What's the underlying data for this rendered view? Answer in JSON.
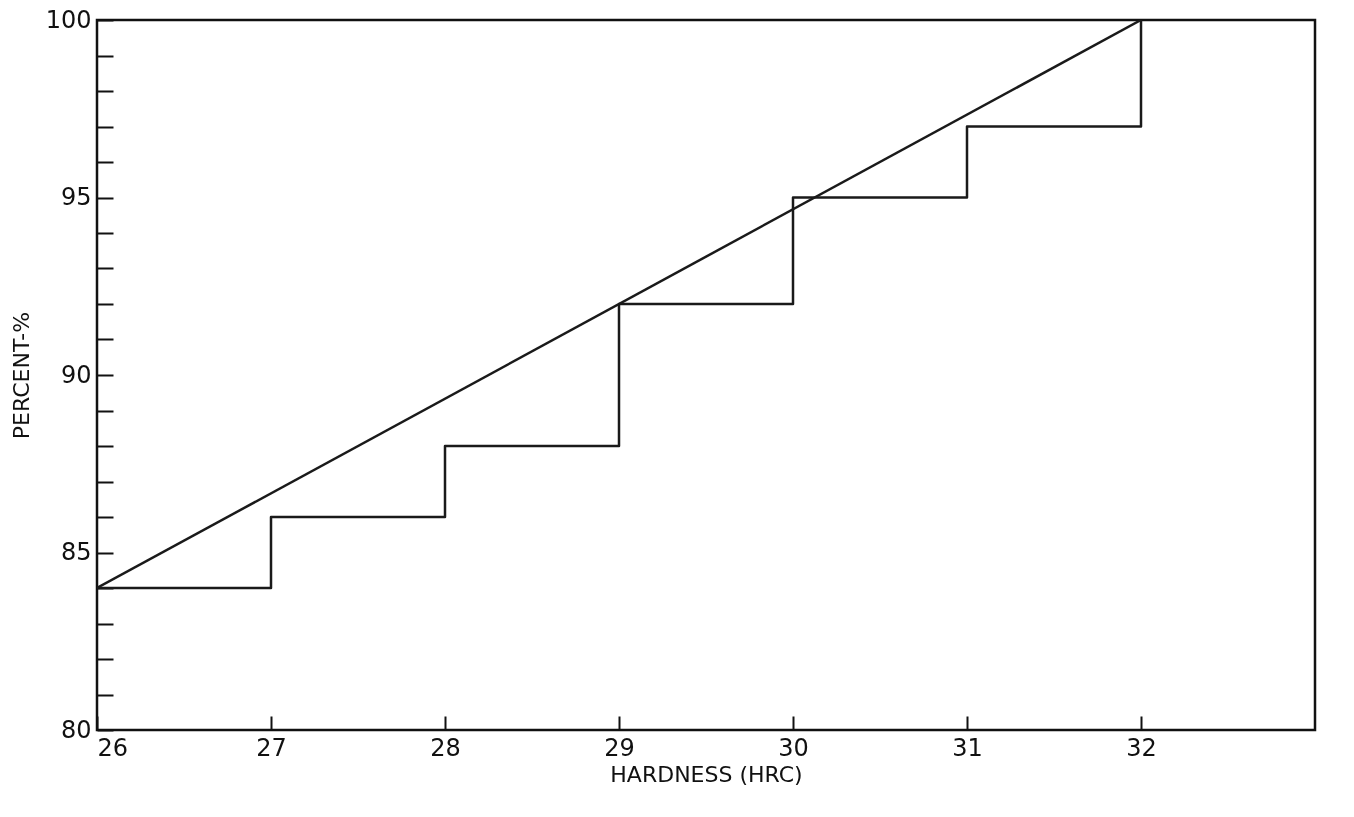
{
  "chart_data": {
    "type": "step",
    "xlabel": "HARDNESS (HRC)",
    "ylabel": "PERCENT-%",
    "xlim": [
      26,
      33
    ],
    "xticks": [
      26,
      27,
      28,
      29,
      30,
      31,
      32
    ],
    "ylim": [
      80,
      100
    ],
    "yticks": [
      80,
      {
        "value": 81,
        "label": null
      },
      {
        "value": 82,
        "label": null
      },
      {
        "value": 83,
        "label": null
      },
      {
        "value": 84,
        "label": null
      },
      85,
      {
        "value": 86,
        "label": null
      },
      {
        "value": 87,
        "label": null
      },
      {
        "value": 88,
        "label": null
      },
      {
        "value": 89,
        "label": null
      },
      90,
      {
        "value": 91,
        "label": null
      },
      {
        "value": 92,
        "label": null
      },
      {
        "value": 93,
        "label": null
      },
      {
        "value": 94,
        "label": null
      },
      95,
      {
        "value": 96,
        "label": null
      },
      {
        "value": 97,
        "label": null
      },
      {
        "value": 98,
        "label": null
      },
      {
        "value": 99,
        "label": null
      },
      100
    ],
    "grid": false,
    "marker": "none",
    "line_style": "solid",
    "series": [
      {
        "type": "step",
        "color": "#1a1a1a",
        "x": [
          26,
          27,
          28,
          29,
          30,
          31,
          32
        ],
        "values": [
          84,
          86,
          88,
          92,
          95,
          97,
          100
        ]
      },
      {
        "type": "line",
        "color": "#1a1a1a",
        "x": [
          26,
          32
        ],
        "values": [
          84,
          100
        ]
      }
    ]
  }
}
